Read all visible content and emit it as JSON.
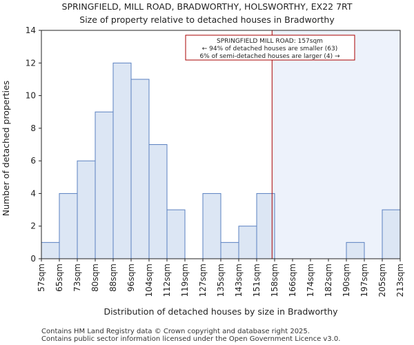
{
  "chart_data": {
    "type": "bar",
    "title": "SPRINGFIELD, MILL ROAD, BRADWORTHY, HOLSWORTHY, EX22 7RT",
    "subtitle": "Size of property relative to detached houses in Bradworthy",
    "xlabel": "Distribution of detached houses by size in Bradworthy",
    "ylabel": "Number of detached properties",
    "bin_edges": [
      57,
      65,
      73,
      80,
      88,
      96,
      104,
      112,
      119,
      127,
      135,
      143,
      151,
      158,
      166,
      174,
      182,
      190,
      197,
      205,
      213
    ],
    "tick_labels": [
      "57sqm",
      "65sqm",
      "73sqm",
      "80sqm",
      "88sqm",
      "96sqm",
      "104sqm",
      "112sqm",
      "119sqm",
      "127sqm",
      "135sqm",
      "143sqm",
      "151sqm",
      "158sqm",
      "166sqm",
      "174sqm",
      "182sqm",
      "190sqm",
      "197sqm",
      "205sqm",
      "213sqm"
    ],
    "values": [
      1,
      4,
      6,
      9,
      12,
      11,
      7,
      3,
      0,
      4,
      1,
      2,
      4,
      0,
      0,
      0,
      0,
      1,
      0,
      3
    ],
    "ylim": [
      0,
      14
    ],
    "yticks": [
      0,
      2,
      4,
      6,
      8,
      10,
      12,
      14
    ],
    "property_size": 157,
    "annotation": {
      "line1": "SPRINGFIELD MILL ROAD: 157sqm",
      "line2": "← 94% of detached houses are smaller (63)",
      "line3": "6% of semi-detached houses are larger (4) →"
    },
    "colors": {
      "bar_fill": "#dce6f4",
      "bar_edge": "#5a80c0",
      "marker_line": "#aa0000",
      "shade": "#edf2fb"
    }
  },
  "footer": {
    "line1": "Contains HM Land Registry data © Crown copyright and database right 2025.",
    "line2": "Contains public sector information licensed under the Open Government Licence v3.0."
  }
}
